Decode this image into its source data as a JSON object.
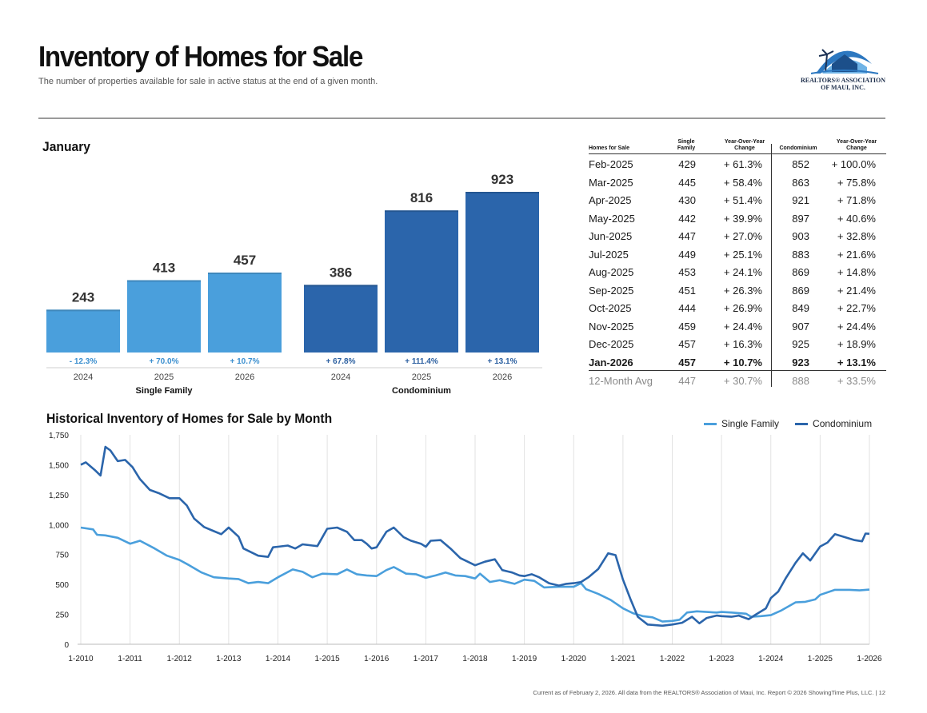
{
  "header": {
    "title": "Inventory of Homes for Sale",
    "subtitle": "The number of properties available for sale in active status at the end of a given month."
  },
  "logo": {
    "line1": "REALTORS® ASSOCIATION",
    "line2": "OF MAUI, INC."
  },
  "colors": {
    "single_family": "#4a9fdc",
    "condominium": "#2b65ab"
  },
  "chart_data": [
    {
      "type": "bar",
      "title": "January",
      "groups": [
        {
          "name": "Single Family",
          "bars": [
            {
              "year": "2024",
              "value": 243,
              "label": "243",
              "change": "- 12.3%"
            },
            {
              "year": "2025",
              "value": 413,
              "label": "413",
              "change": "+ 70.0%"
            },
            {
              "year": "2026",
              "value": 457,
              "label": "457",
              "change": "+ 10.7%"
            }
          ]
        },
        {
          "name": "Condominium",
          "bars": [
            {
              "year": "2024",
              "value": 386,
              "label": "386",
              "change": "+ 67.8%"
            },
            {
              "year": "2025",
              "value": 816,
              "label": "816",
              "change": "+ 111.4%"
            },
            {
              "year": "2026",
              "value": 923,
              "label": "923",
              "change": "+ 13.1%"
            }
          ]
        }
      ],
      "ylim": [
        0,
        923
      ]
    },
    {
      "type": "line",
      "title": "Historical Inventory of Homes for Sale by Month",
      "x_ticks": [
        "1-2010",
        "1-2011",
        "1-2012",
        "1-2013",
        "1-2014",
        "1-2015",
        "1-2016",
        "1-2017",
        "1-2018",
        "1-2019",
        "1-2020",
        "1-2021",
        "1-2022",
        "1-2023",
        "1-2024",
        "1-2025",
        "1-2026"
      ],
      "y_ticks": [
        "0",
        "250",
        "500",
        "750",
        "1,000",
        "1,250",
        "1,500",
        "1,750"
      ],
      "ylim": [
        0,
        1750
      ],
      "xlim": [
        2010.0,
        2026.0
      ],
      "series": [
        {
          "name": "Single Family",
          "points": [
            [
              2010.0,
              975
            ],
            [
              2010.25,
              960
            ],
            [
              2010.33,
              915
            ],
            [
              2010.5,
              910
            ],
            [
              2010.75,
              890
            ],
            [
              2011.0,
              840
            ],
            [
              2011.2,
              865
            ],
            [
              2011.5,
              800
            ],
            [
              2011.75,
              740
            ],
            [
              2012.0,
              705
            ],
            [
              2012.2,
              660
            ],
            [
              2012.45,
              600
            ],
            [
              2012.7,
              560
            ],
            [
              2013.0,
              550
            ],
            [
              2013.2,
              545
            ],
            [
              2013.4,
              510
            ],
            [
              2013.6,
              520
            ],
            [
              2013.8,
              510
            ],
            [
              2014.0,
              560
            ],
            [
              2014.3,
              625
            ],
            [
              2014.5,
              605
            ],
            [
              2014.7,
              560
            ],
            [
              2014.9,
              590
            ],
            [
              2015.2,
              585
            ],
            [
              2015.4,
              625
            ],
            [
              2015.6,
              585
            ],
            [
              2015.8,
              575
            ],
            [
              2016.0,
              570
            ],
            [
              2016.2,
              620
            ],
            [
              2016.35,
              645
            ],
            [
              2016.6,
              590
            ],
            [
              2016.8,
              585
            ],
            [
              2017.0,
              555
            ],
            [
              2017.2,
              575
            ],
            [
              2017.4,
              600
            ],
            [
              2017.6,
              575
            ],
            [
              2017.8,
              570
            ],
            [
              2018.0,
              550
            ],
            [
              2018.1,
              590
            ],
            [
              2018.3,
              520
            ],
            [
              2018.5,
              535
            ],
            [
              2018.8,
              505
            ],
            [
              2019.0,
              540
            ],
            [
              2019.2,
              530
            ],
            [
              2019.4,
              475
            ],
            [
              2019.7,
              480
            ],
            [
              2020.0,
              480
            ],
            [
              2020.15,
              510
            ],
            [
              2020.25,
              460
            ],
            [
              2020.5,
              420
            ],
            [
              2020.75,
              370
            ],
            [
              2021.0,
              300
            ],
            [
              2021.2,
              260
            ],
            [
              2021.4,
              235
            ],
            [
              2021.6,
              225
            ],
            [
              2021.8,
              190
            ],
            [
              2022.0,
              195
            ],
            [
              2022.15,
              205
            ],
            [
              2022.3,
              265
            ],
            [
              2022.5,
              275
            ],
            [
              2022.7,
              270
            ],
            [
              2022.9,
              265
            ],
            [
              2023.0,
              270
            ],
            [
              2023.2,
              265
            ],
            [
              2023.5,
              255
            ],
            [
              2023.6,
              230
            ],
            [
              2023.8,
              235
            ],
            [
              2024.0,
              243
            ],
            [
              2024.2,
              280
            ],
            [
              2024.5,
              350
            ],
            [
              2024.7,
              355
            ],
            [
              2024.9,
              375
            ],
            [
              2025.0,
              413
            ],
            [
              2025.3,
              455
            ],
            [
              2025.6,
              455
            ],
            [
              2025.8,
              450
            ],
            [
              2026.0,
              457
            ]
          ]
        },
        {
          "name": "Condominium",
          "points": [
            [
              2010.0,
              1500
            ],
            [
              2010.1,
              1520
            ],
            [
              2010.3,
              1450
            ],
            [
              2010.4,
              1410
            ],
            [
              2010.5,
              1650
            ],
            [
              2010.6,
              1620
            ],
            [
              2010.75,
              1530
            ],
            [
              2010.9,
              1540
            ],
            [
              2011.05,
              1480
            ],
            [
              2011.2,
              1380
            ],
            [
              2011.4,
              1290
            ],
            [
              2011.6,
              1260
            ],
            [
              2011.8,
              1220
            ],
            [
              2012.0,
              1220
            ],
            [
              2012.15,
              1160
            ],
            [
              2012.3,
              1050
            ],
            [
              2012.5,
              980
            ],
            [
              2012.7,
              945
            ],
            [
              2012.85,
              920
            ],
            [
              2013.0,
              975
            ],
            [
              2013.2,
              900
            ],
            [
              2013.3,
              800
            ],
            [
              2013.45,
              770
            ],
            [
              2013.6,
              740
            ],
            [
              2013.8,
              730
            ],
            [
              2013.9,
              810
            ],
            [
              2014.0,
              815
            ],
            [
              2014.2,
              825
            ],
            [
              2014.35,
              800
            ],
            [
              2014.5,
              835
            ],
            [
              2014.7,
              825
            ],
            [
              2014.8,
              820
            ],
            [
              2015.0,
              965
            ],
            [
              2015.2,
              975
            ],
            [
              2015.4,
              940
            ],
            [
              2015.55,
              870
            ],
            [
              2015.7,
              870
            ],
            [
              2015.8,
              840
            ],
            [
              2015.9,
              800
            ],
            [
              2016.0,
              810
            ],
            [
              2016.2,
              940
            ],
            [
              2016.35,
              975
            ],
            [
              2016.55,
              895
            ],
            [
              2016.7,
              865
            ],
            [
              2016.9,
              840
            ],
            [
              2017.0,
              815
            ],
            [
              2017.1,
              865
            ],
            [
              2017.3,
              870
            ],
            [
              2017.5,
              800
            ],
            [
              2017.7,
              720
            ],
            [
              2017.85,
              690
            ],
            [
              2018.0,
              660
            ],
            [
              2018.2,
              690
            ],
            [
              2018.4,
              710
            ],
            [
              2018.55,
              620
            ],
            [
              2018.75,
              600
            ],
            [
              2018.9,
              575
            ],
            [
              2019.0,
              570
            ],
            [
              2019.15,
              585
            ],
            [
              2019.3,
              560
            ],
            [
              2019.5,
              510
            ],
            [
              2019.7,
              490
            ],
            [
              2019.85,
              505
            ],
            [
              2020.0,
              510
            ],
            [
              2020.15,
              520
            ],
            [
              2020.3,
              560
            ],
            [
              2020.5,
              630
            ],
            [
              2020.7,
              760
            ],
            [
              2020.85,
              745
            ],
            [
              2021.0,
              540
            ],
            [
              2021.15,
              380
            ],
            [
              2021.3,
              230
            ],
            [
              2021.5,
              165
            ],
            [
              2021.8,
              155
            ],
            [
              2022.0,
              165
            ],
            [
              2022.2,
              180
            ],
            [
              2022.4,
              230
            ],
            [
              2022.55,
              175
            ],
            [
              2022.7,
              220
            ],
            [
              2022.9,
              240
            ],
            [
              2023.0,
              235
            ],
            [
              2023.2,
              230
            ],
            [
              2023.35,
              240
            ],
            [
              2023.55,
              210
            ],
            [
              2023.7,
              250
            ],
            [
              2023.9,
              300
            ],
            [
              2024.0,
              386
            ],
            [
              2024.15,
              440
            ],
            [
              2024.3,
              550
            ],
            [
              2024.5,
              680
            ],
            [
              2024.65,
              760
            ],
            [
              2024.8,
              700
            ],
            [
              2025.0,
              816
            ],
            [
              2025.15,
              850
            ],
            [
              2025.3,
              920
            ],
            [
              2025.5,
              895
            ],
            [
              2025.7,
              870
            ],
            [
              2025.85,
              860
            ],
            [
              2025.92,
              925
            ],
            [
              2026.0,
              923
            ]
          ]
        }
      ]
    }
  ],
  "bar_axis": {
    "group_labels": [
      "Single Family",
      "Condominium"
    ]
  },
  "table": {
    "headers": {
      "period": "Homes for Sale",
      "sf": "Single Family",
      "sf_change": "Year-Over-Year Change",
      "condo": "Condominium",
      "condo_change": "Year-Over-Year Change"
    },
    "rows": [
      {
        "period": "Feb-2025",
        "sf": "429",
        "sf_change": "+ 61.3%",
        "condo": "852",
        "condo_change": "+ 100.0%"
      },
      {
        "period": "Mar-2025",
        "sf": "445",
        "sf_change": "+ 58.4%",
        "condo": "863",
        "condo_change": "+ 75.8%"
      },
      {
        "period": "Apr-2025",
        "sf": "430",
        "sf_change": "+ 51.4%",
        "condo": "921",
        "condo_change": "+ 71.8%"
      },
      {
        "period": "May-2025",
        "sf": "442",
        "sf_change": "+ 39.9%",
        "condo": "897",
        "condo_change": "+ 40.6%"
      },
      {
        "period": "Jun-2025",
        "sf": "447",
        "sf_change": "+ 27.0%",
        "condo": "903",
        "condo_change": "+ 32.8%"
      },
      {
        "period": "Jul-2025",
        "sf": "449",
        "sf_change": "+ 25.1%",
        "condo": "883",
        "condo_change": "+ 21.6%"
      },
      {
        "period": "Aug-2025",
        "sf": "453",
        "sf_change": "+ 24.1%",
        "condo": "869",
        "condo_change": "+ 14.8%"
      },
      {
        "period": "Sep-2025",
        "sf": "451",
        "sf_change": "+ 26.3%",
        "condo": "869",
        "condo_change": "+ 21.4%"
      },
      {
        "period": "Oct-2025",
        "sf": "444",
        "sf_change": "+ 26.9%",
        "condo": "849",
        "condo_change": "+ 22.7%"
      },
      {
        "period": "Nov-2025",
        "sf": "459",
        "sf_change": "+ 24.4%",
        "condo": "907",
        "condo_change": "+ 24.4%"
      },
      {
        "period": "Dec-2025",
        "sf": "457",
        "sf_change": "+ 16.3%",
        "condo": "925",
        "condo_change": "+ 18.9%"
      },
      {
        "period": "Jan-2026",
        "sf": "457",
        "sf_change": "+ 10.7%",
        "condo": "923",
        "condo_change": "+ 13.1%"
      },
      {
        "period": "12-Month Avg",
        "sf": "447",
        "sf_change": "+ 30.7%",
        "condo": "888",
        "condo_change": "+ 33.5%"
      }
    ]
  },
  "footer": "Current as of February 2, 2026. All data from the REALTORS® Association of Maui, Inc. Report © 2026 ShowingTime Plus, LLC.  |  12"
}
